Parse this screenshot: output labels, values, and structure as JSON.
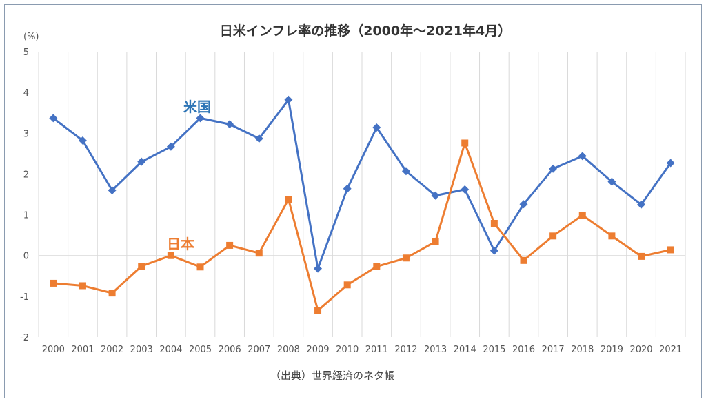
{
  "chart_data": {
    "type": "line",
    "title": "日米インフレ率の推移（2000年～2021年4月）",
    "ylabel": "(%)",
    "ylim": [
      -2,
      5
    ],
    "yticks": [
      -2,
      -1,
      0,
      1,
      2,
      3,
      4,
      5
    ],
    "grid": "vertical",
    "categories": [
      "2000",
      "2001",
      "2002",
      "2003",
      "2004",
      "2005",
      "2006",
      "2007",
      "2008",
      "2009",
      "2010",
      "2011",
      "2012",
      "2013",
      "2014",
      "2015",
      "2016",
      "2017",
      "2018",
      "2019",
      "2020",
      "2021"
    ],
    "series": [
      {
        "name": "米国",
        "color": "#4472c4",
        "marker": "diamond",
        "values": [
          3.37,
          2.82,
          1.6,
          2.3,
          2.67,
          3.37,
          3.22,
          2.87,
          3.82,
          -0.32,
          1.64,
          3.14,
          2.07,
          1.47,
          1.62,
          0.12,
          1.26,
          2.13,
          2.44,
          1.81,
          1.25,
          2.27
        ]
      },
      {
        "name": "日本",
        "color": "#ed7d31",
        "marker": "square",
        "values": [
          -0.68,
          -0.74,
          -0.92,
          -0.26,
          0.0,
          -0.28,
          0.25,
          0.06,
          1.38,
          -1.35,
          -0.72,
          -0.27,
          -0.06,
          0.34,
          2.76,
          0.79,
          -0.12,
          0.48,
          0.99,
          0.48,
          -0.02,
          0.14
        ]
      }
    ],
    "annotations": [
      "（出典）世界経済のネタ帳"
    ]
  }
}
